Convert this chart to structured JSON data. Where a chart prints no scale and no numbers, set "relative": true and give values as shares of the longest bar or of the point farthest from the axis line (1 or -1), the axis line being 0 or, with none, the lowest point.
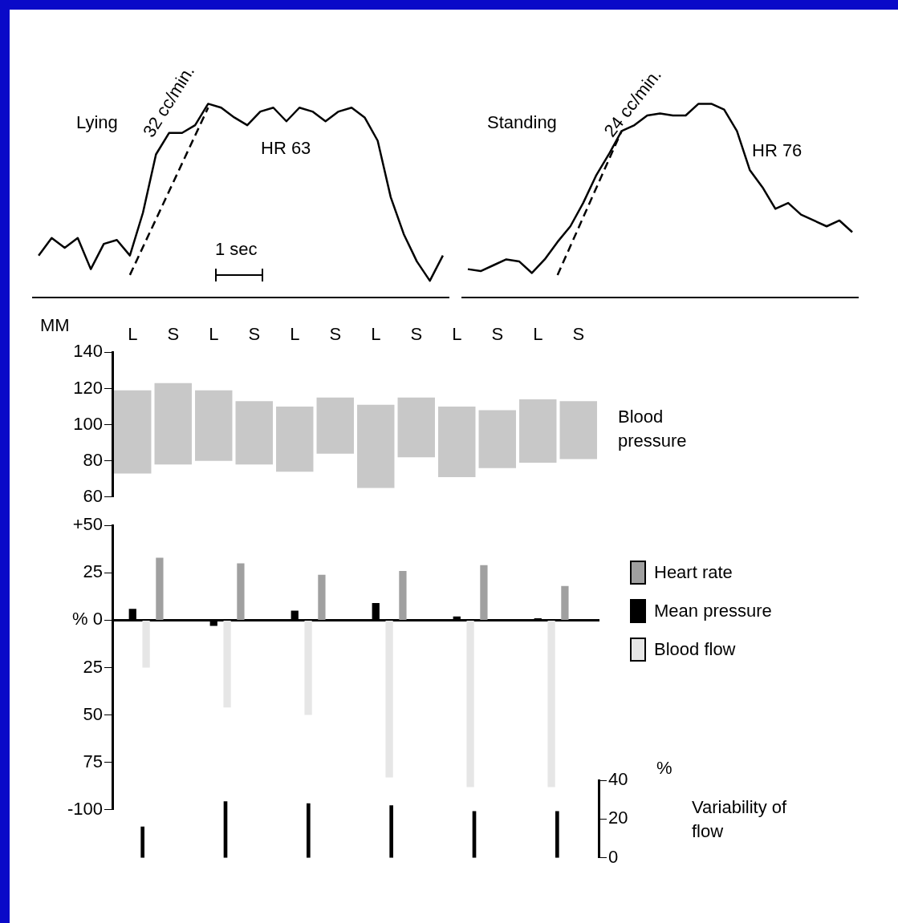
{
  "chart_data": [
    {
      "type": "line",
      "relative": true,
      "tick_labels": false,
      "categories": [
        null,
        null,
        null,
        null,
        null,
        null,
        null,
        null,
        null,
        null,
        null,
        null,
        null,
        null,
        null,
        null,
        null,
        null,
        null,
        null,
        null,
        null,
        null,
        null,
        null,
        null,
        null,
        null,
        null,
        null,
        null,
        null
      ],
      "series": [
        {
          "color": "#000000",
          "values": [
            0.22,
            0.31,
            0.26,
            0.31,
            0.15,
            0.28,
            0.3,
            0.22,
            0.44,
            0.74,
            0.85,
            0.85,
            0.89,
            1,
            0.98,
            0.93,
            0.89,
            0.96,
            0.98,
            0.91,
            0.98,
            0.96,
            0.91,
            0.96,
            0.98,
            0.93,
            0.81,
            0.52,
            0.33,
            0.19,
            0.09,
            0.22
          ]
        },
        {
          "type": "line",
          "line_style": "dashed",
          "color": "#000000",
          "values": [
            null,
            null,
            null,
            null,
            null,
            null,
            null,
            0.12,
            null,
            null,
            null,
            null,
            null,
            0.98,
            null,
            null,
            null,
            null,
            null,
            null,
            null,
            null,
            null,
            null,
            null,
            null,
            null,
            null,
            null,
            null,
            null,
            null
          ]
        }
      ],
      "annotations": [
        "Lying",
        "32 cc/min.",
        "HR 63",
        "1 sec"
      ]
    },
    {
      "type": "line",
      "relative": true,
      "tick_labels": false,
      "categories": [
        null,
        null,
        null,
        null,
        null,
        null,
        null,
        null,
        null,
        null,
        null,
        null,
        null,
        null,
        null,
        null,
        null,
        null,
        null,
        null,
        null,
        null,
        null,
        null,
        null,
        null,
        null,
        null,
        null,
        null,
        null
      ],
      "series": [
        {
          "color": "#000000",
          "values": [
            0.15,
            0.14,
            0.17,
            0.2,
            0.19,
            0.13,
            0.2,
            0.29,
            0.37,
            0.49,
            0.63,
            0.74,
            0.86,
            0.89,
            0.94,
            0.95,
            0.94,
            0.94,
            1,
            1,
            0.97,
            0.86,
            0.66,
            0.57,
            0.46,
            0.49,
            0.43,
            0.4,
            0.37,
            0.4,
            0.34
          ]
        },
        {
          "type": "line",
          "line_style": "dashed",
          "color": "#000000",
          "values": [
            null,
            null,
            null,
            null,
            null,
            null,
            null,
            0.12,
            null,
            null,
            null,
            null,
            0.86,
            null,
            null,
            null,
            null,
            null,
            null,
            null,
            null,
            null,
            null,
            null,
            null,
            null,
            null,
            null,
            null,
            null,
            null
          ]
        }
      ],
      "annotations": [
        "Standing",
        "24 cc/min.",
        "HR 76"
      ]
    },
    {
      "type": "bar",
      "categories": [
        "L",
        "S",
        "L",
        "S",
        "L",
        "S",
        "L",
        "S",
        "L",
        "S",
        "L",
        "S"
      ],
      "ylabel": "MM",
      "ylim": [
        60,
        140
      ],
      "yticks": [
        60,
        80,
        100,
        120,
        140
      ],
      "base": [
        73,
        78,
        80,
        78,
        74,
        84,
        65,
        82,
        71,
        76,
        79,
        81
      ],
      "values": [
        46,
        45,
        39,
        35,
        36,
        31,
        46,
        33,
        39,
        32,
        35,
        32
      ],
      "color": "#c8c8c8",
      "annotations": [
        "Blood pressure"
      ]
    },
    {
      "type": "bar",
      "tick_labels": "y",
      "categories": [
        null,
        null,
        null,
        null,
        null,
        null,
        null,
        null,
        null,
        null,
        null,
        null
      ],
      "ylim": [
        -100,
        50
      ],
      "yticks": [
        {
          "value": 50,
          "label": "+50"
        },
        25,
        {
          "value": 0,
          "label": "% 0"
        },
        {
          "value": -25,
          "label": "25"
        },
        {
          "value": -50,
          "label": "50"
        },
        {
          "value": -75,
          "label": "75"
        },
        -100
      ],
      "legend": "right",
      "series": [
        {
          "name": "Heart rate",
          "color": "#a0a0a0",
          "values": [
            null,
            33,
            null,
            30,
            null,
            24,
            null,
            26,
            null,
            29,
            null,
            18
          ]
        },
        {
          "name": "Mean pressure",
          "color": "#000000",
          "values": [
            6,
            null,
            -3,
            null,
            5,
            null,
            9,
            null,
            2,
            null,
            1,
            null
          ]
        },
        {
          "name": "Blood flow",
          "color": "#e6e6e6",
          "values": [
            -25,
            null,
            -46,
            null,
            -50,
            null,
            -83,
            null,
            -88,
            null,
            -88,
            null
          ]
        }
      ]
    },
    {
      "type": "bar",
      "tick_labels": "y",
      "categories": [
        null,
        null,
        null,
        null,
        null,
        null
      ],
      "ylabel": "%",
      "ylim": [
        0,
        40
      ],
      "yticks": [
        0,
        20,
        40
      ],
      "values": [
        16,
        29,
        28,
        27,
        24,
        24
      ],
      "color": "#000000",
      "annotations": [
        "Variability of flow"
      ]
    }
  ]
}
